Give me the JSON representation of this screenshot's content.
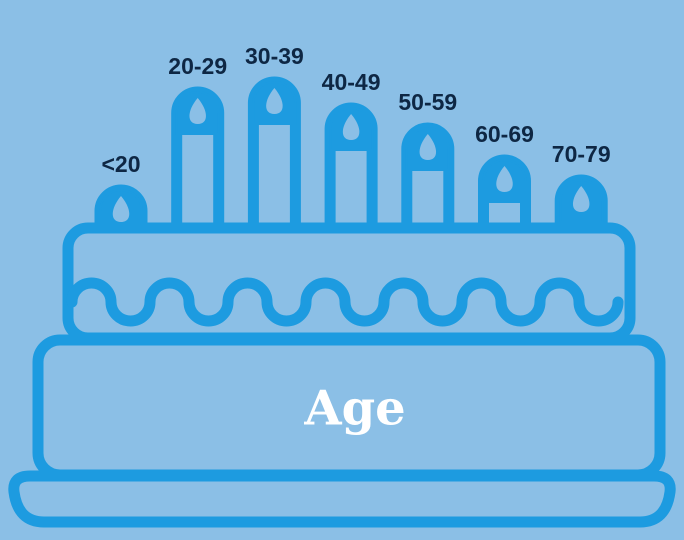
{
  "chart_data": {
    "type": "candle-bar",
    "title": "Age",
    "categories": [
      "<20",
      "20-29",
      "30-39",
      "40-49",
      "50-59",
      "60-69",
      "70-79"
    ],
    "values": [
      38,
      136,
      146,
      120,
      100,
      68,
      48
    ],
    "color": "#1d9be0"
  }
}
